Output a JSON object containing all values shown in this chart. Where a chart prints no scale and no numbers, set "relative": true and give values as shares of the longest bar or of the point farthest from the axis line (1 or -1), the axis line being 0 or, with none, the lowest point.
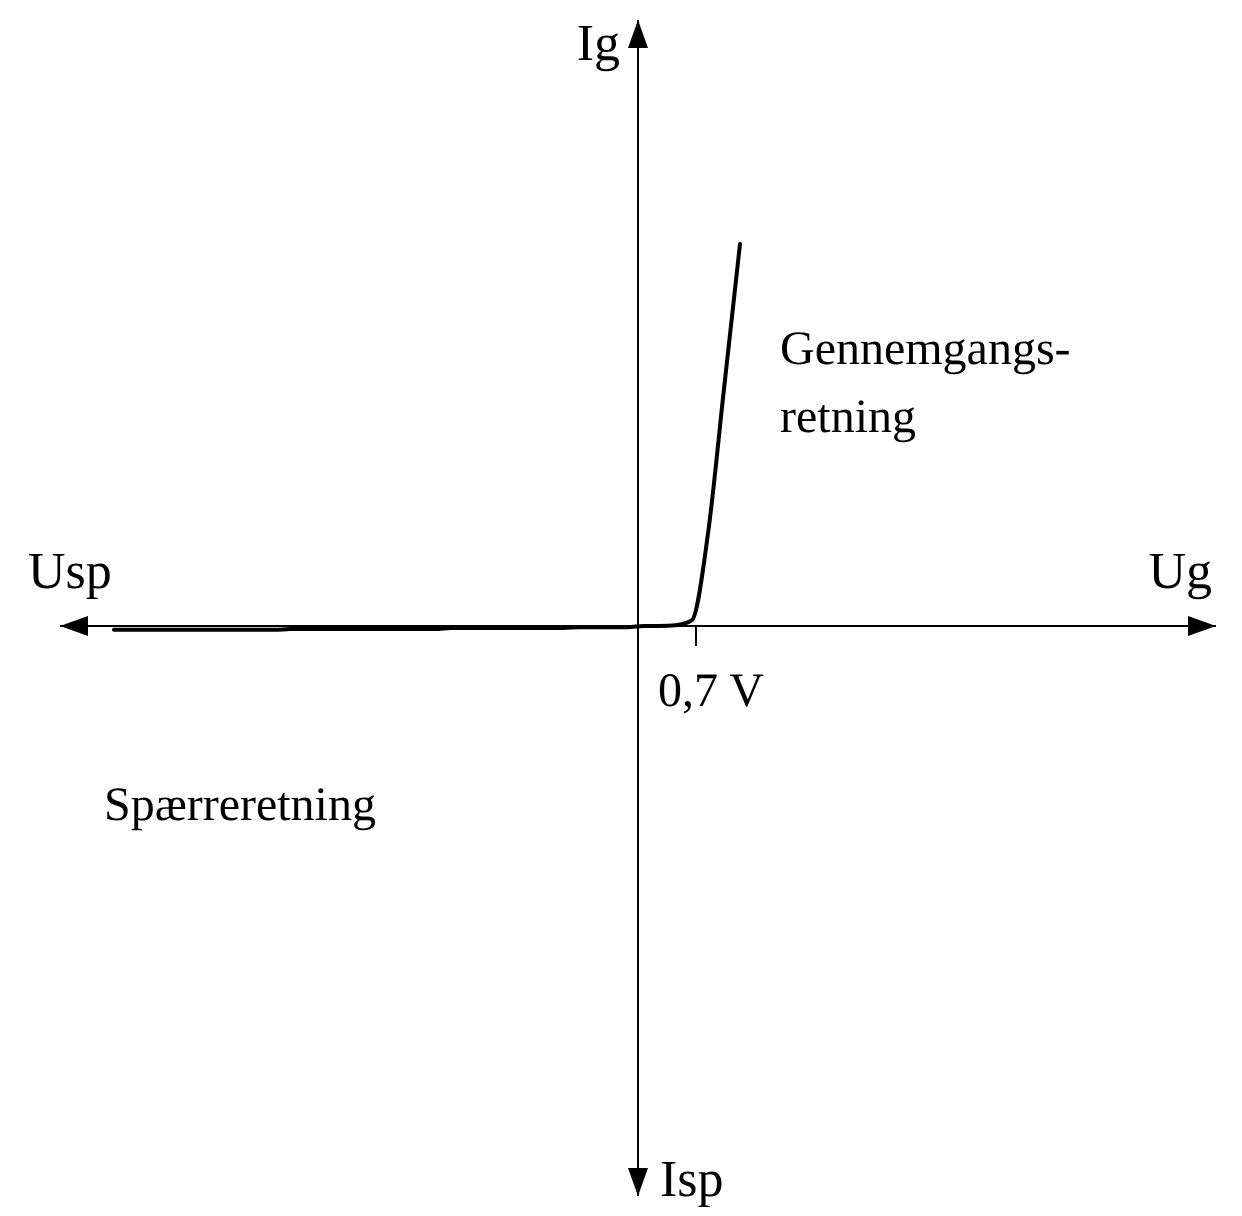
{
  "chart_data": {
    "type": "line",
    "relative": true,
    "categories": [
      null,
      null,
      null,
      null,
      null,
      null,
      null,
      null,
      null,
      null,
      null,
      null,
      null,
      null,
      null,
      null,
      null,
      null,
      null,
      null,
      null,
      null,
      null,
      null,
      null,
      null,
      null,
      null,
      null,
      null,
      null,
      null,
      null,
      null,
      null,
      null,
      null,
      null,
      null,
      null
    ],
    "series": [
      {
        "color": "#000000",
        "values": [
          -0.01,
          -0.01,
          -0.01,
          -0.01,
          -0.01,
          -0.01,
          -0.01,
          -0.01,
          -0.01,
          -0.01,
          -0.01,
          -0.008,
          -0.008,
          -0.008,
          -0.008,
          -0.008,
          -0.008,
          -0.008,
          -0.008,
          -0.008,
          -0.008,
          -0.005,
          -0.005,
          -0.005,
          -0.005,
          -0.005,
          -0.005,
          -0.005,
          -0.005,
          -0.003,
          -0.003,
          -0.003,
          -0.003,
          0,
          0,
          0.002,
          0.015,
          0.24,
          0.62,
          1
        ]
      }
    ],
    "annotations": [
      "Usp",
      "Isp",
      "Gennemgangs-\nretning",
      "Spærreretning",
      "0,7 V",
      "Ug",
      "Ig"
    ]
  }
}
